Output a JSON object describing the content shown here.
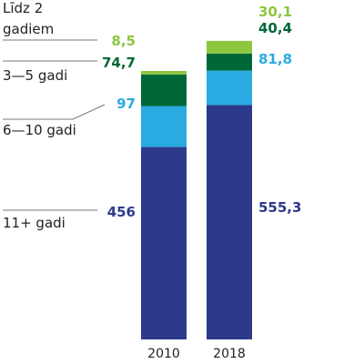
{
  "chart_data": {
    "type": "bar",
    "stacked": true,
    "categories": [
      "2010",
      "2018"
    ],
    "series": [
      {
        "name": "11+ gadi",
        "color": "#2d3a8c",
        "values": [
          456,
          555.3
        ],
        "labels": [
          "456",
          "555,3"
        ]
      },
      {
        "name": "6—10 gadi",
        "color": "#29abe2",
        "values": [
          97,
          81.8
        ],
        "labels": [
          "97",
          "81,8"
        ]
      },
      {
        "name": "3—5 gadi",
        "color": "#006838",
        "values": [
          74.7,
          40.4
        ],
        "labels": [
          "74,7",
          "40,4"
        ]
      },
      {
        "name": "Līdz 2 gadiem",
        "color": "#8dc63f",
        "values": [
          8.5,
          30.1
        ],
        "labels": [
          "8,5",
          "30,1"
        ]
      }
    ],
    "legend_lines": {
      "lidz2": [
        "Līdz 2",
        "gadiem"
      ]
    },
    "legend_placement": "left, with leader lines to the 2010 bar",
    "grid": false
  }
}
